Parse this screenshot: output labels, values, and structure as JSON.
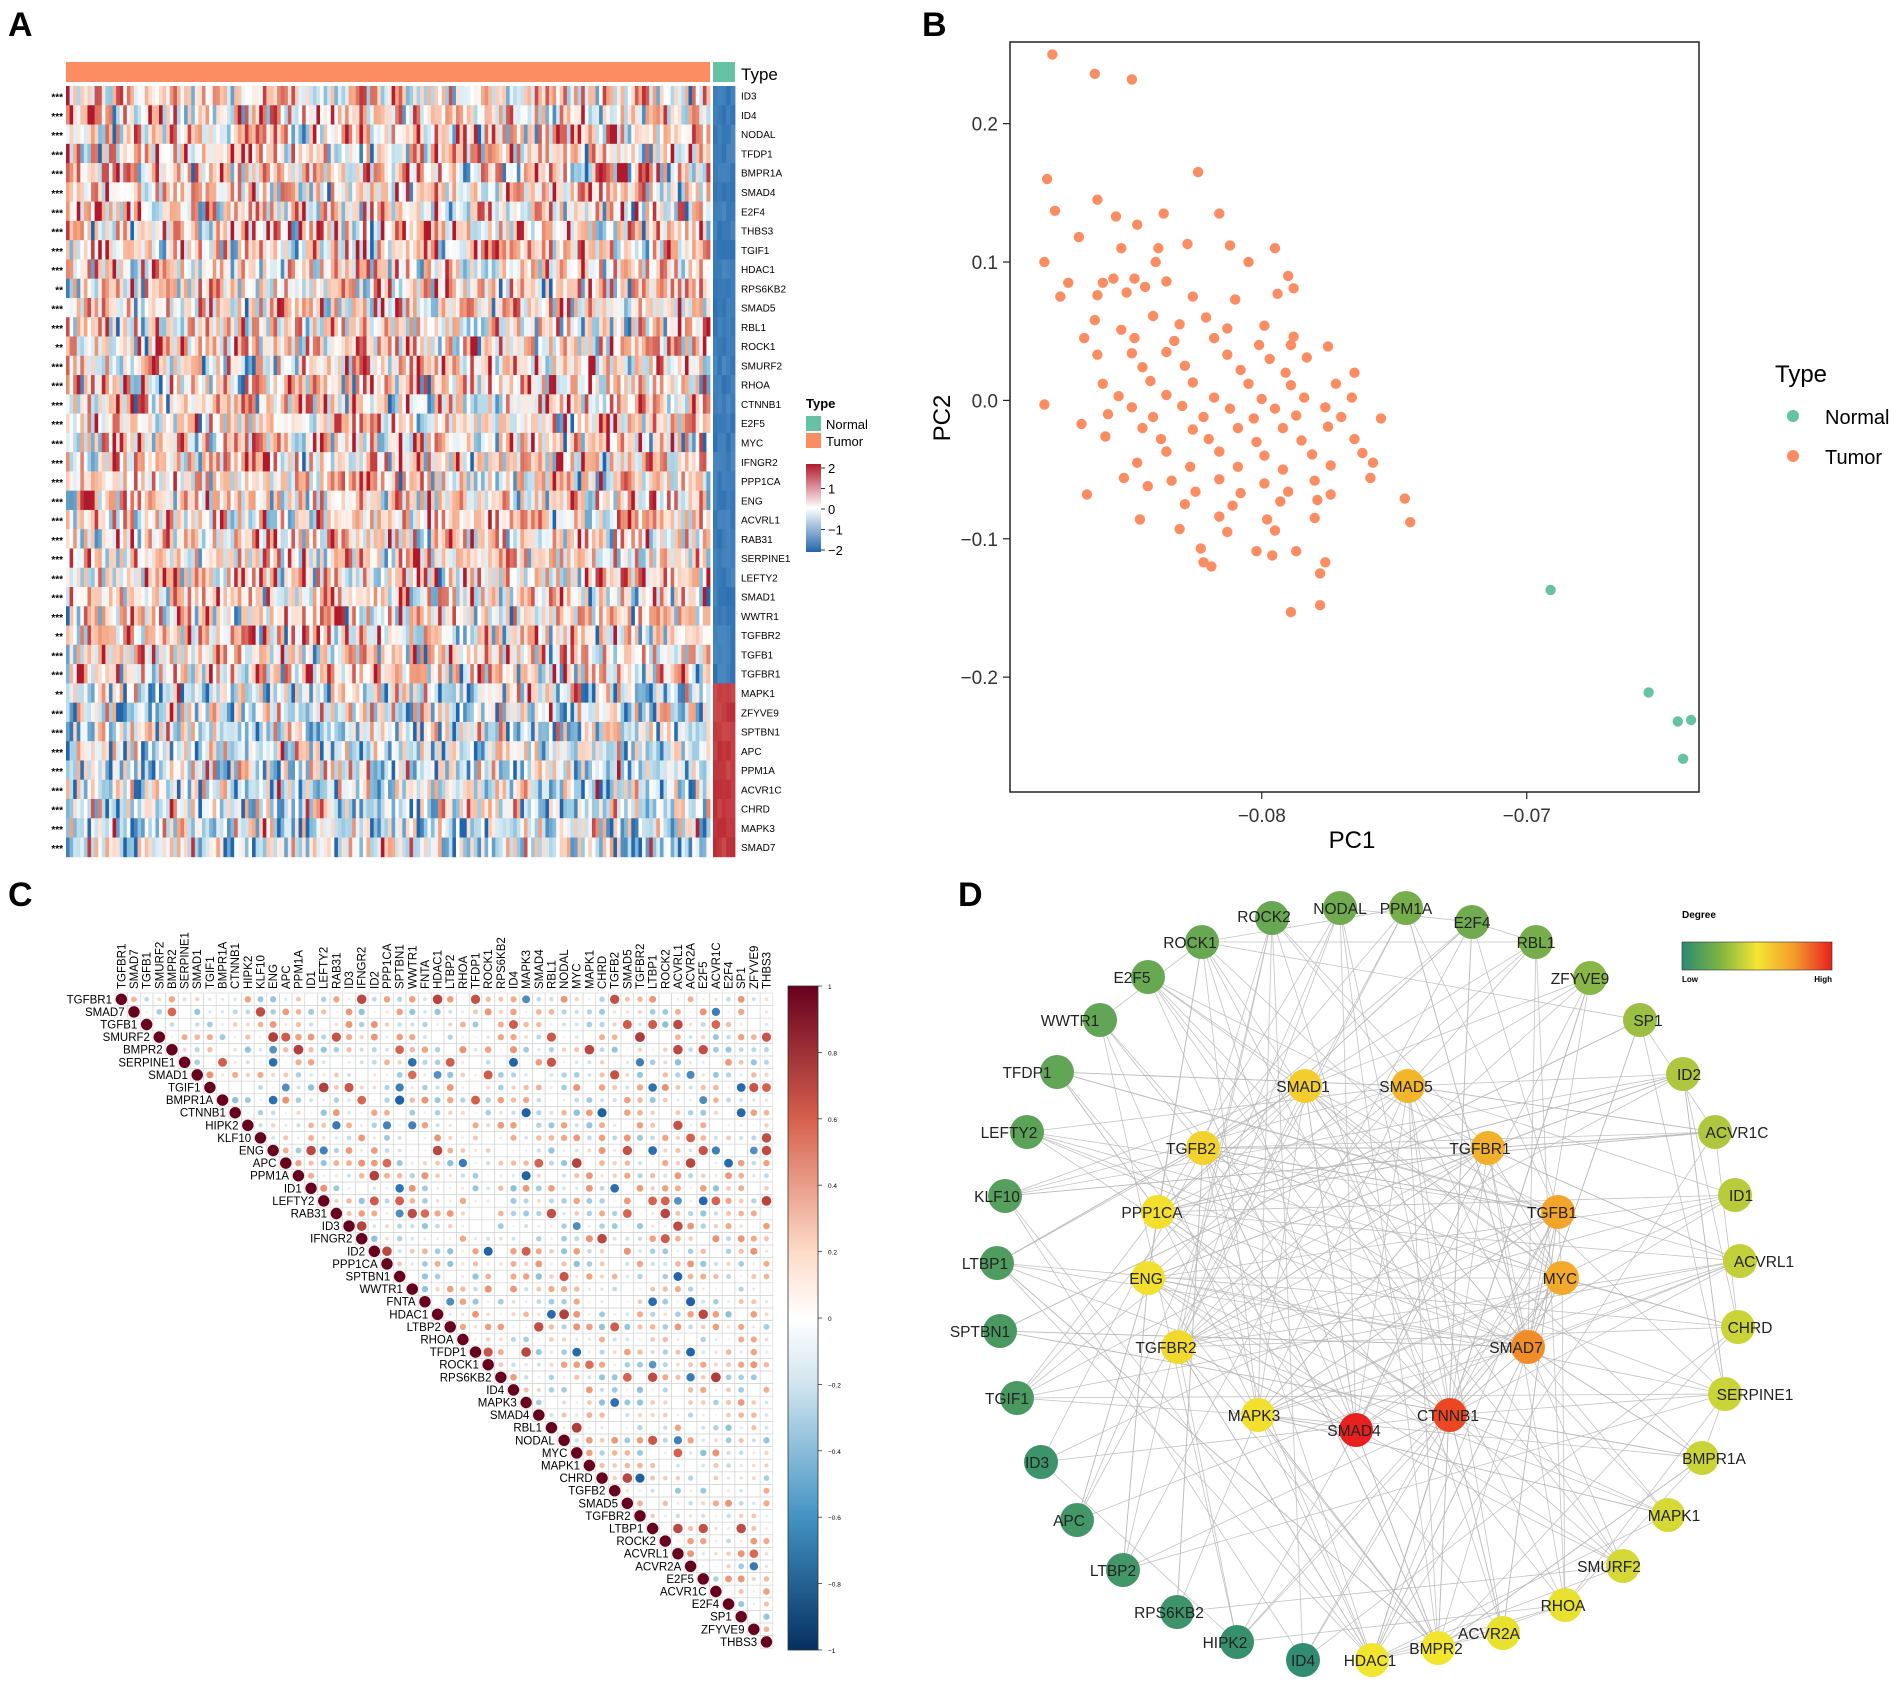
{
  "panel_labels": {
    "a": "A",
    "b": "B",
    "c": "C",
    "d": "D"
  },
  "colors": {
    "normal": "#66c2a5",
    "tumor": "#fc8d62",
    "heat_low": "#2b5fa8",
    "heat_mid": "#ffffff",
    "heat_high": "#c0283a",
    "corr_neg": "#053061",
    "corr_pos": "#67001f",
    "edge": "#b8b8b8"
  },
  "chart_data": [
    {
      "id": "heatmap",
      "type": "heatmap",
      "title": "",
      "annotation_label": "Type",
      "legend_type_title": "Type",
      "legend_types": [
        "Normal",
        "Tumor"
      ],
      "legend_scale_ticks": [
        "2",
        "1",
        "0",
        "−1",
        "−2"
      ],
      "genes": [
        "ID3",
        "ID4",
        "NODAL",
        "TFDP1",
        "BMPR1A",
        "SMAD4",
        "E2F4",
        "THBS3",
        "TGIF1",
        "HDAC1",
        "RPS6KB2",
        "SMAD5",
        "RBL1",
        "ROCK1",
        "SMURF2",
        "RHOA",
        "CTNNB1",
        "E2F5",
        "MYC",
        "IFNGR2",
        "PPP1CA",
        "ENG",
        "ACVRL1",
        "RAB31",
        "SERPINE1",
        "LEFTY2",
        "SMAD1",
        "WWTR1",
        "TGFBR2",
        "TGFB1",
        "TGFBR1",
        "MAPK1",
        "ZFYVE9",
        "SPTBN1",
        "APC",
        "PPM1A",
        "ACVR1C",
        "CHRD",
        "MAPK3",
        "SMAD7"
      ],
      "significance": [
        "***",
        "***",
        "***",
        "***",
        "***",
        "***",
        "***",
        "***",
        "***",
        "***",
        "**",
        "***",
        "***",
        "**",
        "***",
        "***",
        "***",
        "***",
        "***",
        "***",
        "***",
        "***",
        "***",
        "***",
        "***",
        "***",
        "***",
        "***",
        "**",
        "***",
        "***",
        "**",
        "***",
        "***",
        "***",
        "***",
        "***",
        "***",
        "***",
        "***"
      ],
      "n_tumor": 180,
      "n_normal": 5,
      "normal_direction": [
        -1,
        -1,
        -1,
        -1,
        -1,
        -1,
        -1,
        -1,
        -1,
        -1,
        -1,
        -1,
        -1,
        -1,
        -1,
        -1,
        -1,
        -1,
        -1,
        -1,
        -1,
        -1,
        -1,
        -1,
        -1,
        -1,
        -1,
        -1,
        -1,
        -1,
        -1,
        1,
        1,
        1,
        1,
        1,
        1,
        1,
        1,
        1
      ]
    },
    {
      "id": "pca",
      "type": "scatter",
      "xlabel": "PC1",
      "ylabel": "PC2",
      "xlim": [
        -0.0895,
        -0.0635
      ],
      "ylim": [
        -0.283,
        0.259
      ],
      "xticks": [
        -0.08,
        -0.07
      ],
      "xtick_labels": [
        "−0.08",
        "−0.07"
      ],
      "yticks": [
        0.2,
        0.1,
        0.0,
        -0.1,
        -0.2
      ],
      "ytick_labels": [
        "0.2",
        "0.1",
        "0.0",
        "−0.1",
        "−0.2"
      ],
      "legend_title": "Type",
      "legend_entries": [
        "Normal",
        "Tumor"
      ],
      "series": [
        {
          "name": "Normal",
          "points": [
            [
              -0.0691,
              -0.137
            ],
            [
              -0.0654,
              -0.211
            ],
            [
              -0.0643,
              -0.232
            ],
            [
              -0.0638,
              -0.231
            ],
            [
              -0.0641,
              -0.259
            ]
          ]
        },
        {
          "name": "Tumor",
          "points": [
            [
              -0.0879,
              0.25
            ],
            [
              -0.0863,
              0.236
            ],
            [
              -0.0849,
              0.232
            ],
            [
              -0.0881,
              0.16
            ],
            [
              -0.0862,
              0.145
            ],
            [
              -0.0824,
              0.165
            ],
            [
              -0.0855,
              0.133
            ],
            [
              -0.0837,
              0.135
            ],
            [
              -0.0847,
              0.127
            ],
            [
              -0.0878,
              0.137
            ],
            [
              -0.0816,
              0.135
            ],
            [
              -0.0869,
              0.118
            ],
            [
              -0.0828,
              0.113
            ],
            [
              -0.0812,
              0.112
            ],
            [
              -0.0839,
              0.11
            ],
            [
              -0.0853,
              0.11
            ],
            [
              -0.0795,
              0.11
            ],
            [
              -0.0882,
              0.1
            ],
            [
              -0.084,
              0.1
            ],
            [
              -0.0873,
              0.085
            ],
            [
              -0.0856,
              0.088
            ],
            [
              -0.0844,
              0.082
            ],
            [
              -0.086,
              0.085
            ],
            [
              -0.0848,
              0.088
            ],
            [
              -0.0836,
              0.086
            ],
            [
              -0.0805,
              0.1
            ],
            [
              -0.079,
              0.09
            ],
            [
              -0.0876,
              0.075
            ],
            [
              -0.0851,
              0.078
            ],
            [
              -0.0862,
              0.076
            ],
            [
              -0.0826,
              0.075
            ],
            [
              -0.081,
              0.073
            ],
            [
              -0.0794,
              0.077
            ],
            [
              -0.0788,
              0.081
            ],
            [
              -0.0863,
              0.058
            ],
            [
              -0.0841,
              0.061
            ],
            [
              -0.0821,
              0.06
            ],
            [
              -0.0799,
              0.054
            ],
            [
              -0.0853,
              0.051
            ],
            [
              -0.0831,
              0.055
            ],
            [
              -0.0813,
              0.052
            ],
            [
              -0.0788,
              0.046
            ],
            [
              -0.0867,
              0.045
            ],
            [
              -0.0848,
              0.045
            ],
            [
              -0.0833,
              0.043
            ],
            [
              -0.0818,
              0.045
            ],
            [
              -0.0801,
              0.04
            ],
            [
              -0.0789,
              0.04
            ],
            [
              -0.0775,
              0.039
            ],
            [
              -0.0862,
              0.033
            ],
            [
              -0.0849,
              0.034
            ],
            [
              -0.0836,
              0.035
            ],
            [
              -0.0813,
              0.033
            ],
            [
              -0.0797,
              0.03
            ],
            [
              -0.0783,
              0.031
            ],
            [
              -0.0845,
              0.024
            ],
            [
              -0.0829,
              0.025
            ],
            [
              -0.0808,
              0.022
            ],
            [
              -0.0791,
              0.02
            ],
            [
              -0.0765,
              0.02
            ],
            [
              -0.086,
              0.012
            ],
            [
              -0.0842,
              0.014
            ],
            [
              -0.0826,
              0.013
            ],
            [
              -0.0805,
              0.012
            ],
            [
              -0.0789,
              0.011
            ],
            [
              -0.0772,
              0.012
            ],
            [
              -0.0854,
              0.003
            ],
            [
              -0.0836,
              0.004
            ],
            [
              -0.0818,
              0.002
            ],
            [
              -0.08,
              0.001
            ],
            [
              -0.0784,
              0.002
            ],
            [
              -0.0766,
              0.002
            ],
            [
              -0.0882,
              -0.003
            ],
            [
              -0.0849,
              -0.005
            ],
            [
              -0.083,
              -0.004
            ],
            [
              -0.0812,
              -0.006
            ],
            [
              -0.0795,
              -0.006
            ],
            [
              -0.0776,
              -0.005
            ],
            [
              -0.0858,
              -0.01
            ],
            [
              -0.0841,
              -0.012
            ],
            [
              -0.0822,
              -0.012
            ],
            [
              -0.0803,
              -0.013
            ],
            [
              -0.0787,
              -0.011
            ],
            [
              -0.077,
              -0.012
            ],
            [
              -0.0755,
              -0.013
            ],
            [
              -0.0845,
              -0.02
            ],
            [
              -0.0826,
              -0.021
            ],
            [
              -0.0809,
              -0.02
            ],
            [
              -0.0792,
              -0.02
            ],
            [
              -0.0775,
              -0.019
            ],
            [
              -0.0868,
              -0.017
            ],
            [
              -0.0859,
              -0.026
            ],
            [
              -0.0838,
              -0.028
            ],
            [
              -0.082,
              -0.028
            ],
            [
              -0.0802,
              -0.03
            ],
            [
              -0.0785,
              -0.029
            ],
            [
              -0.0765,
              -0.028
            ],
            [
              -0.0836,
              -0.037
            ],
            [
              -0.0816,
              -0.037
            ],
            [
              -0.0799,
              -0.04
            ],
            [
              -0.0781,
              -0.039
            ],
            [
              -0.0762,
              -0.038
            ],
            [
              -0.0847,
              -0.045
            ],
            [
              -0.0827,
              -0.048
            ],
            [
              -0.0809,
              -0.048
            ],
            [
              -0.0792,
              -0.05
            ],
            [
              -0.0774,
              -0.047
            ],
            [
              -0.0758,
              -0.045
            ],
            [
              -0.0852,
              -0.056
            ],
            [
              -0.0834,
              -0.058
            ],
            [
              -0.0816,
              -0.057
            ],
            [
              -0.0799,
              -0.06
            ],
            [
              -0.078,
              -0.058
            ],
            [
              -0.0759,
              -0.056
            ],
            [
              -0.0843,
              -0.062
            ],
            [
              -0.0825,
              -0.066
            ],
            [
              -0.0808,
              -0.067
            ],
            [
              -0.079,
              -0.066
            ],
            [
              -0.0774,
              -0.068
            ],
            [
              -0.0866,
              -0.068
            ],
            [
              -0.0829,
              -0.075
            ],
            [
              -0.0811,
              -0.076
            ],
            [
              -0.0793,
              -0.073
            ],
            [
              -0.0779,
              -0.072
            ],
            [
              -0.0746,
              -0.071
            ],
            [
              -0.0816,
              -0.084
            ],
            [
              -0.0798,
              -0.086
            ],
            [
              -0.078,
              -0.085
            ],
            [
              -0.0744,
              -0.088
            ],
            [
              -0.0846,
              -0.086
            ],
            [
              -0.0831,
              -0.093
            ],
            [
              -0.0813,
              -0.095
            ],
            [
              -0.0795,
              -0.094
            ],
            [
              -0.0823,
              -0.107
            ],
            [
              -0.0802,
              -0.109
            ],
            [
              -0.0787,
              -0.109
            ],
            [
              -0.0776,
              -0.117
            ],
            [
              -0.0822,
              -0.117
            ],
            [
              -0.0819,
              -0.12
            ],
            [
              -0.0778,
              -0.125
            ],
            [
              -0.0796,
              -0.112
            ],
            [
              -0.0778,
              -0.148
            ],
            [
              -0.0789,
              -0.153
            ]
          ]
        }
      ]
    },
    {
      "id": "correlation",
      "type": "heatmap",
      "title": "",
      "genes": [
        "TGFBR1",
        "SMAD7",
        "TGFB1",
        "SMURF2",
        "BMPR2",
        "SERPINE1",
        "SMAD1",
        "TGIF1",
        "BMPR1A",
        "CTNNB1",
        "HIPK2",
        "KLF10",
        "ENG",
        "APC",
        "PPM1A",
        "ID1",
        "LEFTY2",
        "RAB31",
        "ID3",
        "IFNGR2",
        "ID2",
        "PPP1CA",
        "SPTBN1",
        "WWTR1",
        "FNTA",
        "HDAC1",
        "LTBP2",
        "RHOA",
        "TFDP1",
        "ROCK1",
        "RPS6KB2",
        "ID4",
        "MAPK3",
        "SMAD4",
        "RBL1",
        "NODAL",
        "MYC",
        "MAPK1",
        "CHRD",
        "TGFB2",
        "SMAD5",
        "TGFBR2",
        "LTBP1",
        "ROCK2",
        "ACVRL1",
        "ACVR2A",
        "E2F5",
        "ACVR1C",
        "E2F4",
        "SP1",
        "ZFYVE9",
        "THBS3"
      ],
      "colorbar_ticks": [
        "1",
        "0.8",
        "0.6",
        "0.4",
        "0.2",
        "0",
        "−0.2",
        "−0.4",
        "−0.6",
        "−0.8",
        "−1"
      ],
      "range": [
        -1,
        1
      ]
    },
    {
      "id": "network",
      "type": "network",
      "legend_title": "Degree",
      "legend_low": "Low",
      "legend_high": "High",
      "nodes": [
        {
          "name": "NODAL",
          "degree": 0.22
        },
        {
          "name": "PPM1A",
          "degree": 0.24
        },
        {
          "name": "E2F4",
          "degree": 0.22
        },
        {
          "name": "RBL1",
          "degree": 0.24
        },
        {
          "name": "ZFYVE9",
          "degree": 0.28
        },
        {
          "name": "SP1",
          "degree": 0.32
        },
        {
          "name": "ID2",
          "degree": 0.36
        },
        {
          "name": "ACVR1C",
          "degree": 0.36
        },
        {
          "name": "ID1",
          "degree": 0.38
        },
        {
          "name": "ACVRL1",
          "degree": 0.4
        },
        {
          "name": "CHRD",
          "degree": 0.42
        },
        {
          "name": "SERPINE1",
          "degree": 0.42
        },
        {
          "name": "BMPR1A",
          "degree": 0.42
        },
        {
          "name": "MAPK1",
          "degree": 0.44
        },
        {
          "name": "SMURF2",
          "degree": 0.44
        },
        {
          "name": "RHOA",
          "degree": 0.48
        },
        {
          "name": "ACVR2A",
          "degree": 0.48
        },
        {
          "name": "BMPR2",
          "degree": 0.5
        },
        {
          "name": "HDAC1",
          "degree": 0.5
        },
        {
          "name": "ID4",
          "degree": 0.02
        },
        {
          "name": "HIPK2",
          "degree": 0.04
        },
        {
          "name": "RPS6KB2",
          "degree": 0.06
        },
        {
          "name": "LTBP2",
          "degree": 0.08
        },
        {
          "name": "APC",
          "degree": 0.08
        },
        {
          "name": "ID3",
          "degree": 0.06
        },
        {
          "name": "TGIF1",
          "degree": 0.1
        },
        {
          "name": "SPTBN1",
          "degree": 0.1
        },
        {
          "name": "LTBP1",
          "degree": 0.12
        },
        {
          "name": "KLF10",
          "degree": 0.14
        },
        {
          "name": "LEFTY2",
          "degree": 0.16
        },
        {
          "name": "TFDP1",
          "degree": 0.18
        },
        {
          "name": "WWTR1",
          "degree": 0.18
        },
        {
          "name": "E2F5",
          "degree": 0.2
        },
        {
          "name": "ROCK1",
          "degree": 0.2
        },
        {
          "name": "ROCK2",
          "degree": 0.2
        },
        {
          "name": "SMAD1",
          "degree": 0.58
        },
        {
          "name": "SMAD5",
          "degree": 0.66
        },
        {
          "name": "TGFB2",
          "degree": 0.56
        },
        {
          "name": "TGFBR1",
          "degree": 0.68
        },
        {
          "name": "PPP1CA",
          "degree": 0.52
        },
        {
          "name": "TGFB1",
          "degree": 0.72
        },
        {
          "name": "ENG",
          "degree": 0.52
        },
        {
          "name": "MYC",
          "degree": 0.7
        },
        {
          "name": "TGFBR2",
          "degree": 0.54
        },
        {
          "name": "SMAD7",
          "degree": 0.78
        },
        {
          "name": "MAPK3",
          "degree": 0.52
        },
        {
          "name": "SMAD4",
          "degree": 1.0
        },
        {
          "name": "CTNNB1",
          "degree": 0.92
        }
      ]
    }
  ]
}
